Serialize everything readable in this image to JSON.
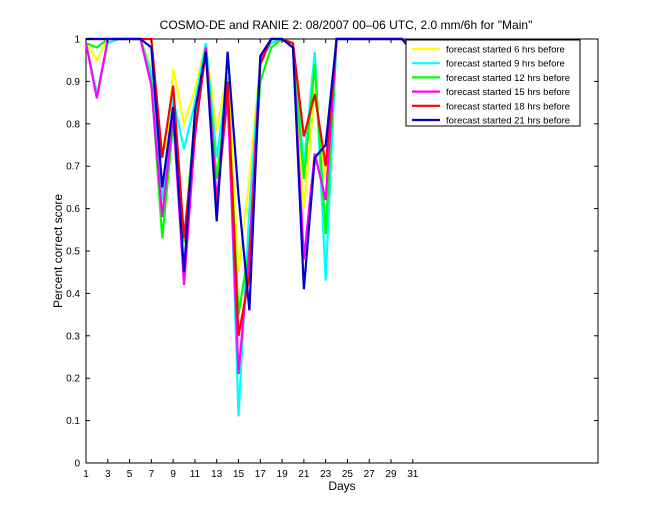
{
  "chart_data": {
    "type": "line",
    "title": "COSMO-DE and RANIE 2: 08/2007 00–06 UTC, 2.0 mm/6h for \"Main\"",
    "xlabel": "Days",
    "ylabel": "Percent correct score",
    "xlim": [
      1,
      48
    ],
    "ylim": [
      0,
      1
    ],
    "xticks": [
      1,
      3,
      5,
      7,
      9,
      11,
      13,
      15,
      17,
      19,
      21,
      23,
      25,
      27,
      29,
      31
    ],
    "yticks": [
      0,
      0.1,
      0.2,
      0.3,
      0.4,
      0.5,
      0.6,
      0.7,
      0.8,
      0.9,
      1
    ],
    "grid": false,
    "legend_position": "top-right",
    "x": [
      1,
      2,
      3,
      4,
      5,
      6,
      7,
      8,
      9,
      10,
      11,
      12,
      13,
      14,
      15,
      16,
      17,
      18,
      19,
      20,
      21,
      22,
      23,
      24,
      25,
      26,
      27,
      28,
      29,
      30,
      31
    ],
    "series": [
      {
        "name": "forecast started 6 hrs before",
        "color": "#ffff00",
        "values": [
          0.99,
          0.95,
          1.0,
          1.0,
          1.0,
          1.0,
          0.93,
          0.6,
          0.93,
          0.8,
          0.88,
          0.99,
          0.78,
          0.93,
          0.45,
          0.67,
          0.95,
          0.99,
          1.0,
          0.99,
          0.6,
          0.88,
          0.67,
          1.0,
          1.0,
          1.0,
          1.0,
          1.0,
          1.0,
          1.0,
          0.98
        ]
      },
      {
        "name": "forecast started 9 hrs before",
        "color": "#00ffff",
        "values": [
          0.99,
          0.87,
          0.99,
          1.0,
          1.0,
          1.0,
          0.92,
          0.62,
          0.86,
          0.74,
          0.85,
          0.99,
          0.72,
          0.91,
          0.11,
          0.6,
          0.95,
          0.99,
          1.0,
          0.99,
          0.7,
          0.97,
          0.43,
          1.0,
          1.0,
          1.0,
          1.0,
          1.0,
          1.0,
          1.0,
          0.98
        ]
      },
      {
        "name": "forecast started 12 hrs before",
        "color": "#00ff00",
        "values": [
          0.99,
          0.98,
          1.0,
          1.0,
          1.0,
          1.0,
          0.9,
          0.53,
          0.8,
          0.52,
          0.82,
          0.98,
          0.67,
          0.88,
          0.35,
          0.51,
          0.9,
          0.98,
          1.0,
          0.98,
          0.67,
          0.94,
          0.54,
          1.0,
          1.0,
          1.0,
          1.0,
          1.0,
          1.0,
          1.0,
          0.98
        ]
      },
      {
        "name": "forecast started 15 hrs before",
        "color": "#ff00ff",
        "values": [
          0.99,
          0.86,
          1.0,
          1.0,
          1.0,
          1.0,
          0.89,
          0.58,
          0.82,
          0.42,
          0.77,
          0.98,
          0.62,
          0.86,
          0.21,
          0.5,
          0.95,
          1.0,
          1.0,
          0.98,
          0.48,
          0.73,
          0.62,
          1.0,
          1.0,
          1.0,
          1.0,
          1.0,
          1.0,
          1.0,
          0.98
        ]
      },
      {
        "name": "forecast started 18 hrs before",
        "color": "#ff0000",
        "values": [
          1.0,
          1.0,
          1.0,
          1.0,
          1.0,
          1.0,
          1.0,
          0.72,
          0.89,
          0.53,
          0.78,
          0.97,
          0.59,
          0.9,
          0.3,
          0.44,
          0.94,
          1.0,
          1.0,
          0.99,
          0.77,
          0.87,
          0.7,
          1.0,
          1.0,
          1.0,
          1.0,
          1.0,
          1.0,
          1.0,
          0.98
        ]
      },
      {
        "name": "forecast started 21 hrs before",
        "color": "#0000cc",
        "values": [
          1.0,
          1.0,
          1.0,
          1.0,
          1.0,
          1.0,
          0.98,
          0.65,
          0.84,
          0.45,
          0.83,
          0.97,
          0.57,
          0.97,
          0.63,
          0.36,
          0.96,
          1.0,
          1.0,
          0.98,
          0.41,
          0.72,
          0.75,
          1.0,
          1.0,
          1.0,
          1.0,
          1.0,
          1.0,
          1.0,
          0.97
        ]
      }
    ]
  }
}
